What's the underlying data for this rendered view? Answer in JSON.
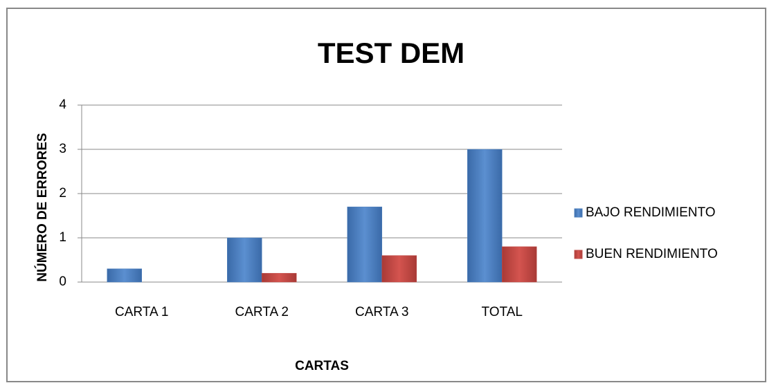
{
  "chart_data": {
    "type": "bar",
    "title": "TEST DEM",
    "x_label": "CARTAS",
    "y_label": "NÚMERO DE ERRORES",
    "categories": [
      "CARTA 1",
      "CARTA 2",
      "CARTA 3",
      "TOTAL"
    ],
    "series": [
      {
        "name": "BAJO RENDIMIENTO",
        "color": "#4f81bd",
        "values": [
          0.3,
          1.0,
          1.7,
          3.0
        ]
      },
      {
        "name": "BUEN RENDIMIENTO",
        "color": "#c0504d",
        "values": [
          0,
          0.2,
          0.6,
          0.8
        ]
      }
    ],
    "ylim": [
      0,
      4
    ],
    "yticks": [
      0,
      1,
      2,
      3,
      4
    ],
    "grid": true,
    "legend": "right"
  }
}
